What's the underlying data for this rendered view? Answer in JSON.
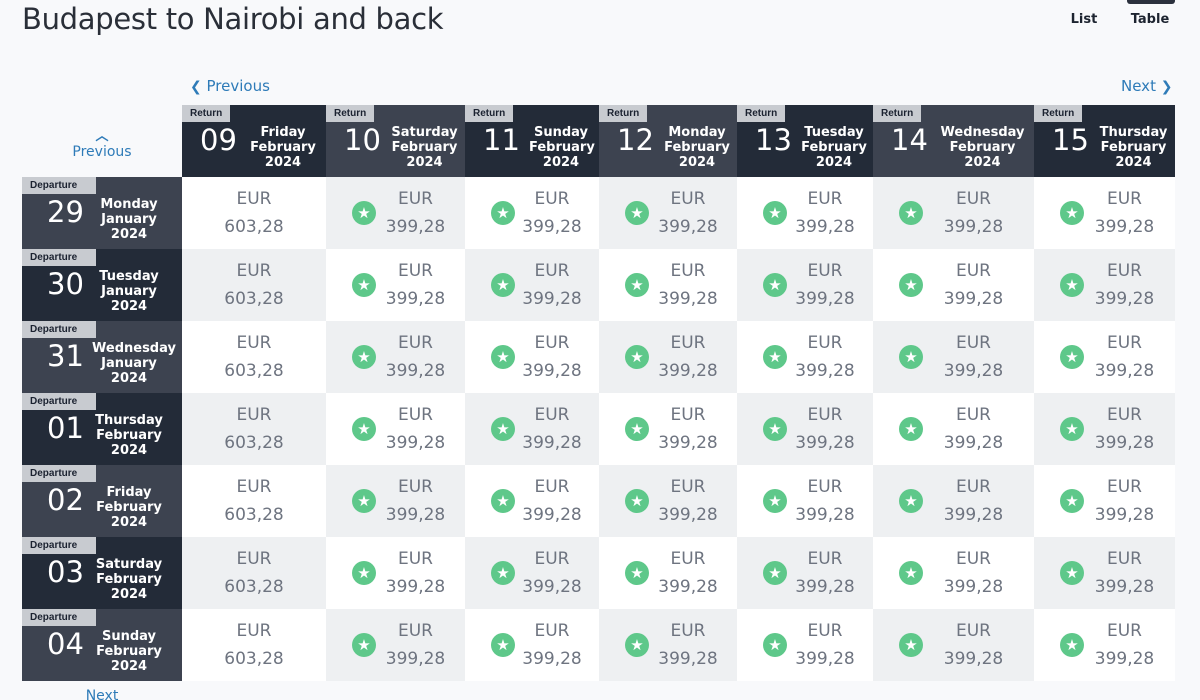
{
  "title": "Budapest to Nairobi and back",
  "view_toggle": {
    "list_label": "List",
    "table_label": "Table"
  },
  "nav": {
    "previous_label": "Previous",
    "next_label": "Next"
  },
  "tags": {
    "return": "Return",
    "departure": "Departure"
  },
  "return_dates": [
    {
      "day": "09",
      "weekday": "Friday",
      "month": "February",
      "year": "2024"
    },
    {
      "day": "10",
      "weekday": "Saturday",
      "month": "February",
      "year": "2024"
    },
    {
      "day": "11",
      "weekday": "Sunday",
      "month": "February",
      "year": "2024"
    },
    {
      "day": "12",
      "weekday": "Monday",
      "month": "February",
      "year": "2024"
    },
    {
      "day": "13",
      "weekday": "Tuesday",
      "month": "February",
      "year": "2024"
    },
    {
      "day": "14",
      "weekday": "Wednesday",
      "month": "February",
      "year": "2024"
    },
    {
      "day": "15",
      "weekday": "Thursday",
      "month": "February",
      "year": "2024"
    }
  ],
  "departure_dates": [
    {
      "day": "29",
      "weekday": "Monday",
      "month": "January",
      "year": "2024"
    },
    {
      "day": "30",
      "weekday": "Tuesday",
      "month": "January",
      "year": "2024"
    },
    {
      "day": "31",
      "weekday": "Wednesday",
      "month": "January",
      "year": "2024"
    },
    {
      "day": "01",
      "weekday": "Thursday",
      "month": "February",
      "year": "2024"
    },
    {
      "day": "02",
      "weekday": "Friday",
      "month": "February",
      "year": "2024"
    },
    {
      "day": "03",
      "weekday": "Saturday",
      "month": "February",
      "year": "2024"
    },
    {
      "day": "04",
      "weekday": "Sunday",
      "month": "February",
      "year": "2024"
    }
  ],
  "prices": [
    [
      {
        "currency": "EUR",
        "amount": "603,28",
        "best": false
      },
      {
        "currency": "EUR",
        "amount": "399,28",
        "best": true
      },
      {
        "currency": "EUR",
        "amount": "399,28",
        "best": true
      },
      {
        "currency": "EUR",
        "amount": "399,28",
        "best": true
      },
      {
        "currency": "EUR",
        "amount": "399,28",
        "best": true
      },
      {
        "currency": "EUR",
        "amount": "399,28",
        "best": true
      },
      {
        "currency": "EUR",
        "amount": "399,28",
        "best": true
      }
    ],
    [
      {
        "currency": "EUR",
        "amount": "603,28",
        "best": false
      },
      {
        "currency": "EUR",
        "amount": "399,28",
        "best": true
      },
      {
        "currency": "EUR",
        "amount": "399,28",
        "best": true
      },
      {
        "currency": "EUR",
        "amount": "399,28",
        "best": true
      },
      {
        "currency": "EUR",
        "amount": "399,28",
        "best": true
      },
      {
        "currency": "EUR",
        "amount": "399,28",
        "best": true
      },
      {
        "currency": "EUR",
        "amount": "399,28",
        "best": true
      }
    ],
    [
      {
        "currency": "EUR",
        "amount": "603,28",
        "best": false
      },
      {
        "currency": "EUR",
        "amount": "399,28",
        "best": true
      },
      {
        "currency": "EUR",
        "amount": "399,28",
        "best": true
      },
      {
        "currency": "EUR",
        "amount": "399,28",
        "best": true
      },
      {
        "currency": "EUR",
        "amount": "399,28",
        "best": true
      },
      {
        "currency": "EUR",
        "amount": "399,28",
        "best": true
      },
      {
        "currency": "EUR",
        "amount": "399,28",
        "best": true
      }
    ],
    [
      {
        "currency": "EUR",
        "amount": "603,28",
        "best": false
      },
      {
        "currency": "EUR",
        "amount": "399,28",
        "best": true
      },
      {
        "currency": "EUR",
        "amount": "399,28",
        "best": true
      },
      {
        "currency": "EUR",
        "amount": "399,28",
        "best": true
      },
      {
        "currency": "EUR",
        "amount": "399,28",
        "best": true
      },
      {
        "currency": "EUR",
        "amount": "399,28",
        "best": true
      },
      {
        "currency": "EUR",
        "amount": "399,28",
        "best": true
      }
    ],
    [
      {
        "currency": "EUR",
        "amount": "603,28",
        "best": false
      },
      {
        "currency": "EUR",
        "amount": "399,28",
        "best": true
      },
      {
        "currency": "EUR",
        "amount": "399,28",
        "best": true
      },
      {
        "currency": "EUR",
        "amount": "399,28",
        "best": true
      },
      {
        "currency": "EUR",
        "amount": "399,28",
        "best": true
      },
      {
        "currency": "EUR",
        "amount": "399,28",
        "best": true
      },
      {
        "currency": "EUR",
        "amount": "399,28",
        "best": true
      }
    ],
    [
      {
        "currency": "EUR",
        "amount": "603,28",
        "best": false
      },
      {
        "currency": "EUR",
        "amount": "399,28",
        "best": true
      },
      {
        "currency": "EUR",
        "amount": "399,28",
        "best": true
      },
      {
        "currency": "EUR",
        "amount": "399,28",
        "best": true
      },
      {
        "currency": "EUR",
        "amount": "399,28",
        "best": true
      },
      {
        "currency": "EUR",
        "amount": "399,28",
        "best": true
      },
      {
        "currency": "EUR",
        "amount": "399,28",
        "best": true
      }
    ],
    [
      {
        "currency": "EUR",
        "amount": "603,28",
        "best": false
      },
      {
        "currency": "EUR",
        "amount": "399,28",
        "best": true
      },
      {
        "currency": "EUR",
        "amount": "399,28",
        "best": true
      },
      {
        "currency": "EUR",
        "amount": "399,28",
        "best": true
      },
      {
        "currency": "EUR",
        "amount": "399,28",
        "best": true
      },
      {
        "currency": "EUR",
        "amount": "399,28",
        "best": true
      },
      {
        "currency": "EUR",
        "amount": "399,28",
        "best": true
      }
    ]
  ],
  "icons": {
    "best_price": "star-icon",
    "previous": "chevron-left-icon",
    "next": "chevron-right-icon",
    "previous_rows": "chevron-up-icon"
  },
  "colors": {
    "header_dark": "#232b38",
    "header_light": "#3d4350",
    "accent_link": "#2e7bb8",
    "best_price": "#5ec88a"
  }
}
